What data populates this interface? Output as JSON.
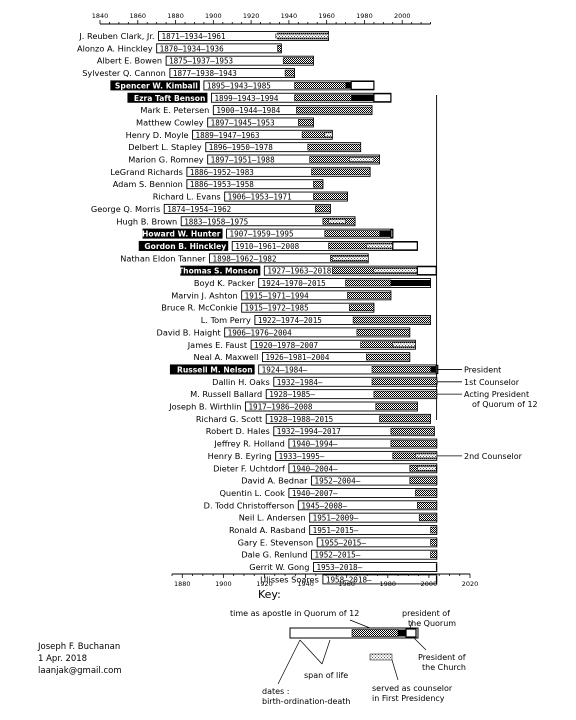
{
  "chart_data": {
    "type": "timeline",
    "x_ticks": [
      1840,
      1860,
      1880,
      1900,
      1920,
      1940,
      1960,
      1980,
      2000
    ],
    "bottom_ticks": [
      1880,
      1900,
      1920,
      1940,
      1960,
      1980,
      2000,
      2020
    ],
    "xlim": [
      1840,
      2020
    ],
    "people": [
      {
        "name": "J. Reuben Clark, Jr.",
        "birth": 1871,
        "ordination": 1934,
        "death": 1961,
        "label": "1871–1934–1961",
        "fp_spans": [
          [
            1933,
            1961
          ]
        ],
        "style": "normal"
      },
      {
        "name": "Alonzo A. Hinckley",
        "birth": 1870,
        "ordination": 1934,
        "death": 1936,
        "label": "1870–1934–1936",
        "fp_spans": [],
        "style": "normal"
      },
      {
        "name": "Albert E. Bowen",
        "birth": 1875,
        "ordination": 1937,
        "death": 1953,
        "label": "1875–1937–1953",
        "fp_spans": [],
        "style": "normal"
      },
      {
        "name": "Sylvester Q. Cannon",
        "birth": 1877,
        "ordination": 1938,
        "death": 1943,
        "label": "1877–1938–1943",
        "fp_spans": [],
        "style": "normal"
      },
      {
        "name": "Spencer W. Kimball",
        "birth": 1895,
        "ordination": 1943,
        "death": 1985,
        "label": "1895–1943–1985",
        "fp_spans": [],
        "pres_q": [
          1970,
          1973
        ],
        "pres_c": [
          1973,
          1985
        ],
        "style": "inverse"
      },
      {
        "name": "Ezra Taft Benson",
        "birth": 1899,
        "ordination": 1943,
        "death": 1994,
        "label": "1899–1943–1994",
        "fp_spans": [],
        "pres_q": [
          1973,
          1985
        ],
        "pres_c": [
          1985,
          1994
        ],
        "style": "inverse"
      },
      {
        "name": "Mark E. Petersen",
        "birth": 1900,
        "ordination": 1944,
        "death": 1984,
        "label": "1900–1944–1984",
        "fp_spans": [],
        "style": "normal"
      },
      {
        "name": "Matthew Cowley",
        "birth": 1897,
        "ordination": 1945,
        "death": 1953,
        "label": "1897–1945–1953",
        "fp_spans": [],
        "style": "normal"
      },
      {
        "name": "Henry D. Moyle",
        "birth": 1889,
        "ordination": 1947,
        "death": 1963,
        "label": "1889–1947–1963",
        "fp_spans": [
          [
            1959,
            1963
          ]
        ],
        "style": "normal"
      },
      {
        "name": "Delbert L. Stapley",
        "birth": 1896,
        "ordination": 1950,
        "death": 1978,
        "label": "1896–1950–1978",
        "fp_spans": [],
        "style": "normal"
      },
      {
        "name": "Marion G. Romney",
        "birth": 1897,
        "ordination": 1951,
        "death": 1988,
        "label": "1897–1951–1988",
        "fp_spans": [
          [
            1972,
            1985
          ]
        ],
        "style": "normal"
      },
      {
        "name": "LeGrand Richards",
        "birth": 1886,
        "ordination": 1952,
        "death": 1983,
        "label": "1886–1952–1983",
        "fp_spans": [],
        "style": "normal"
      },
      {
        "name": "Adam S. Bennion",
        "birth": 1886,
        "ordination": 1953,
        "death": 1958,
        "label": "1886–1953–1958",
        "fp_spans": [],
        "style": "normal"
      },
      {
        "name": "Richard L. Evans",
        "birth": 1906,
        "ordination": 1953,
        "death": 1971,
        "label": "1906–1953–1971",
        "fp_spans": [],
        "style": "normal"
      },
      {
        "name": "George Q. Morris",
        "birth": 1874,
        "ordination": 1954,
        "death": 1962,
        "label": "1874–1954–1962",
        "fp_spans": [],
        "style": "normal"
      },
      {
        "name": "Hugh B. Brown",
        "birth": 1883,
        "ordination": 1958,
        "death": 1975,
        "label": "1883–1958–1975",
        "fp_spans": [
          [
            1961,
            1970
          ]
        ],
        "style": "normal"
      },
      {
        "name": "Howard W. Hunter",
        "birth": 1907,
        "ordination": 1959,
        "death": 1995,
        "label": "1907–1959–1995",
        "fp_spans": [],
        "pres_q": [
          1988,
          1994
        ],
        "pres_c": [
          1994,
          1995
        ],
        "style": "inverse"
      },
      {
        "name": "Gordon B. Hinckley",
        "birth": 1910,
        "ordination": 1961,
        "death": 2008,
        "label": "1910–1961–2008",
        "fp_spans": [
          [
            1981,
            1995
          ]
        ],
        "pres_c": [
          1995,
          2008
        ],
        "style": "inverse"
      },
      {
        "name": "Nathan Eldon Tanner",
        "birth": 1898,
        "ordination": 1962,
        "death": 1982,
        "label": "1898–1962–1982",
        "fp_spans": [
          [
            1963,
            1982
          ]
        ],
        "style": "normal"
      },
      {
        "name": "Thomas S. Monson",
        "birth": 1927,
        "ordination": 1963,
        "death": 2018,
        "label": "1927–1963–2018",
        "fp_spans": [
          [
            1985,
            2008
          ]
        ],
        "pres_c": [
          2008,
          2018
        ],
        "style": "inverse"
      },
      {
        "name": "Boyd K. Packer",
        "birth": 1924,
        "ordination": 1970,
        "death": 2015,
        "label": "1924–1970–2015",
        "fp_spans": [],
        "pres_q": [
          1994,
          2015
        ],
        "style": "normal"
      },
      {
        "name": "Marvin J. Ashton",
        "birth": 1915,
        "ordination": 1971,
        "death": 1994,
        "label": "1915–1971–1994",
        "fp_spans": [],
        "style": "normal"
      },
      {
        "name": "Bruce R. McConkie",
        "birth": 1915,
        "ordination": 1972,
        "death": 1985,
        "label": "1915–1972–1985",
        "fp_spans": [],
        "style": "normal"
      },
      {
        "name": "L. Tom Perry",
        "birth": 1922,
        "ordination": 1974,
        "death": 2015,
        "label": "1922–1974–2015",
        "fp_spans": [],
        "style": "normal"
      },
      {
        "name": "David B. Haight",
        "birth": 1906,
        "ordination": 1976,
        "death": 2004,
        "label": "1906–1976–2004",
        "fp_spans": [],
        "style": "normal"
      },
      {
        "name": "James E. Faust",
        "birth": 1920,
        "ordination": 1978,
        "death": 2007,
        "label": "1920–1978–2007",
        "fp_spans": [
          [
            1995,
            2007
          ]
        ],
        "style": "normal"
      },
      {
        "name": "Neal A. Maxwell",
        "birth": 1926,
        "ordination": 1981,
        "death": 2004,
        "label": "1926–1981–2004",
        "fp_spans": [],
        "style": "normal"
      },
      {
        "name": "Russell M. Nelson",
        "birth": 1924,
        "ordination": 1984,
        "death": null,
        "label": "1924–1984–",
        "fp_spans": [],
        "pres_q": [
          2015,
          2018
        ],
        "pres_c": [
          2018,
          2018.3
        ],
        "style": "inverse",
        "annotation": "President"
      },
      {
        "name": "Dallin H. Oaks",
        "birth": 1932,
        "ordination": 1984,
        "death": null,
        "label": "1932–1984–",
        "fp_spans": [
          [
            2018,
            2018.3
          ]
        ],
        "style": "normal",
        "annotation": "1st Counselor"
      },
      {
        "name": "M. Russell Ballard",
        "birth": 1928,
        "ordination": 1985,
        "death": null,
        "label": "1928–1985–",
        "fp_spans": [],
        "style": "normal",
        "annotation": "Acting President",
        "annotation2": "of Quorum of 12"
      },
      {
        "name": "Joseph B. Wirthlin",
        "birth": 1917,
        "ordination": 1986,
        "death": 2008,
        "label": "1917–1986–2008",
        "fp_spans": [],
        "style": "normal"
      },
      {
        "name": "Richard G. Scott",
        "birth": 1928,
        "ordination": 1988,
        "death": 2015,
        "label": "1928–1988–2015",
        "fp_spans": [],
        "style": "normal"
      },
      {
        "name": "Robert D. Hales",
        "birth": 1932,
        "ordination": 1994,
        "death": 2017,
        "label": "1932–1994–2017",
        "fp_spans": [],
        "style": "normal"
      },
      {
        "name": "Jeffrey R. Holland",
        "birth": 1940,
        "ordination": 1994,
        "death": null,
        "label": "1940–1994–",
        "fp_spans": [],
        "style": "normal"
      },
      {
        "name": "Henry B. Eyring",
        "birth": 1933,
        "ordination": 1995,
        "death": null,
        "label": "1933–1995–",
        "fp_spans": [
          [
            2007,
            2018.3
          ]
        ],
        "style": "normal",
        "annotation": "2nd Counselor"
      },
      {
        "name": "Dieter F. Uchtdorf",
        "birth": 1940,
        "ordination": 2004,
        "death": null,
        "label": "1940–2004–",
        "fp_spans": [
          [
            2008,
            2018
          ]
        ],
        "style": "normal"
      },
      {
        "name": "David A. Bednar",
        "birth": 1952,
        "ordination": 2004,
        "death": null,
        "label": "1952–2004–",
        "fp_spans": [],
        "style": "normal"
      },
      {
        "name": "Quentin L. Cook",
        "birth": 1940,
        "ordination": 2007,
        "death": null,
        "label": "1940–2007–",
        "fp_spans": [],
        "style": "normal"
      },
      {
        "name": "D. Todd Christofferson",
        "birth": 1945,
        "ordination": 2008,
        "death": null,
        "label": "1945–2008–",
        "fp_spans": [],
        "style": "normal"
      },
      {
        "name": "Neil L. Andersen",
        "birth": 1951,
        "ordination": 2009,
        "death": null,
        "label": "1951–2009–",
        "fp_spans": [],
        "style": "normal"
      },
      {
        "name": "Ronald A. Rasband",
        "birth": 1951,
        "ordination": 2015,
        "death": null,
        "label": "1951–2015–",
        "fp_spans": [],
        "style": "normal"
      },
      {
        "name": "Gary E. Stevenson",
        "birth": 1955,
        "ordination": 2015,
        "death": null,
        "label": "1955–2015–",
        "fp_spans": [],
        "style": "normal"
      },
      {
        "name": "Dale G. Renlund",
        "birth": 1952,
        "ordination": 2015,
        "death": null,
        "label": "1952–2015–",
        "fp_spans": [],
        "style": "normal"
      },
      {
        "name": "Gerrit W. Gong",
        "birth": 1953,
        "ordination": 2018,
        "death": null,
        "label": "1953–2018–",
        "fp_spans": [],
        "style": "normal"
      },
      {
        "name": "Ulisses Soares",
        "birth": 1958,
        "ordination": 2018,
        "death": null,
        "label": "1958–2018–",
        "fp_spans": [],
        "style": "normal"
      }
    ],
    "key": {
      "title": "Key:",
      "apostle": "time as apostle in Quorum of 12",
      "pres_quorum_1": "president of",
      "pres_quorum_2": "the Quorum",
      "pres_church_1": "President of",
      "pres_church_2": "the Church",
      "span": "span of life",
      "counselor_1": "served as counselor",
      "counselor_2": "in First Presidency",
      "dates_1": "dates :",
      "dates_2": "birth-ordination-death"
    }
  },
  "author": {
    "name": "Joseph F. Buchanan",
    "date": "1 Apr. 2018",
    "email": "laanjak@gmail.com"
  }
}
